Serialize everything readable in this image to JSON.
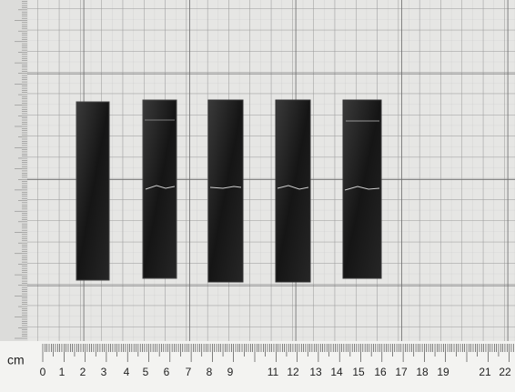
{
  "ruler": {
    "unit": "cm",
    "labels": [
      "0",
      "1",
      "2",
      "3",
      "4",
      "5",
      "6",
      "7",
      "8",
      "9",
      "11",
      "12",
      "13",
      "14",
      "15",
      "16",
      "17",
      "18",
      "19",
      "21",
      "22"
    ]
  }
}
